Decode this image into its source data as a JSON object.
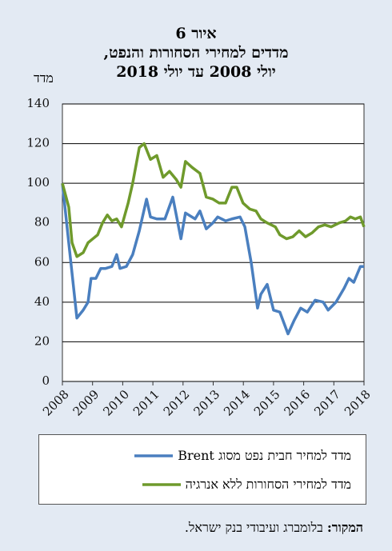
{
  "chart_data": {
    "type": "line",
    "title": [
      "איור 6",
      "מדדים למחירי הסחורות והנפט,",
      "יולי 2008 עד יולי 2018"
    ],
    "y_label": "מדד",
    "xlim": [
      2008,
      2018
    ],
    "xticks": [
      2008,
      2009,
      2010,
      2011,
      2012,
      2013,
      2014,
      2015,
      2016,
      2017,
      2018
    ],
    "ylim": [
      0,
      140
    ],
    "yticks": [
      0,
      20,
      40,
      60,
      80,
      100,
      120,
      140
    ],
    "grid": true,
    "series": [
      {
        "name": "מדד למחיר חבית נפט מסוג Brent",
        "color": "#4a7fbf",
        "x": [
          2008.0,
          2008.21,
          2008.48,
          2008.69,
          2008.85,
          2008.95,
          2009.11,
          2009.27,
          2009.43,
          2009.64,
          2009.8,
          2009.91,
          2010.12,
          2010.33,
          2010.55,
          2010.79,
          2010.92,
          2011.13,
          2011.4,
          2011.66,
          2011.93,
          2012.08,
          2012.4,
          2012.56,
          2012.77,
          2012.99,
          2013.15,
          2013.41,
          2013.62,
          2013.89,
          2014.05,
          2014.26,
          2014.47,
          2014.58,
          2014.79,
          2015.0,
          2015.21,
          2015.48,
          2015.69,
          2015.9,
          2016.12,
          2016.38,
          2016.65,
          2016.81,
          2017.07,
          2017.34,
          2017.5,
          2017.66,
          2017.88,
          2018.0
        ],
        "values": [
          100,
          70,
          32,
          36,
          40,
          52,
          52,
          57,
          57,
          58,
          64,
          57,
          58,
          64,
          76,
          92,
          83,
          82,
          82,
          93,
          72,
          85,
          82,
          86,
          77,
          80,
          83,
          81,
          82,
          83,
          78,
          60,
          37,
          44,
          49,
          36,
          35,
          24,
          31,
          37,
          35,
          41,
          40,
          36,
          40,
          47,
          52,
          50,
          58,
          58
        ]
      },
      {
        "name": "מדד למחירי הסחורות ללא אנרגיה",
        "color": "#6f9a2c",
        "x": [
          2008.0,
          2008.21,
          2008.32,
          2008.48,
          2008.69,
          2008.85,
          2009.01,
          2009.17,
          2009.33,
          2009.49,
          2009.64,
          2009.8,
          2009.96,
          2010.18,
          2010.33,
          2010.55,
          2010.71,
          2010.92,
          2011.13,
          2011.34,
          2011.55,
          2011.77,
          2011.93,
          2012.08,
          2012.3,
          2012.56,
          2012.77,
          2012.99,
          2013.2,
          2013.41,
          2013.62,
          2013.78,
          2013.99,
          2014.21,
          2014.42,
          2014.58,
          2014.79,
          2015.06,
          2015.21,
          2015.43,
          2015.64,
          2015.85,
          2016.06,
          2016.28,
          2016.49,
          2016.7,
          2016.91,
          2017.18,
          2017.39,
          2017.55,
          2017.71,
          2017.88,
          2018.0
        ],
        "values": [
          100,
          88,
          70,
          63,
          65,
          70,
          72,
          74,
          80,
          84,
          81,
          82,
          78,
          90,
          100,
          118,
          120,
          112,
          114,
          103,
          106,
          102,
          98,
          111,
          108,
          105,
          93,
          92,
          90,
          90,
          98,
          98,
          90,
          87,
          86,
          82,
          80,
          78,
          74,
          72,
          73,
          76,
          73,
          75,
          78,
          79,
          78,
          80,
          81,
          83,
          82,
          83,
          78
        ]
      }
    ],
    "source_label": "המקור:",
    "source_text": "בלומברג ועיבודי בנק ישראל."
  }
}
